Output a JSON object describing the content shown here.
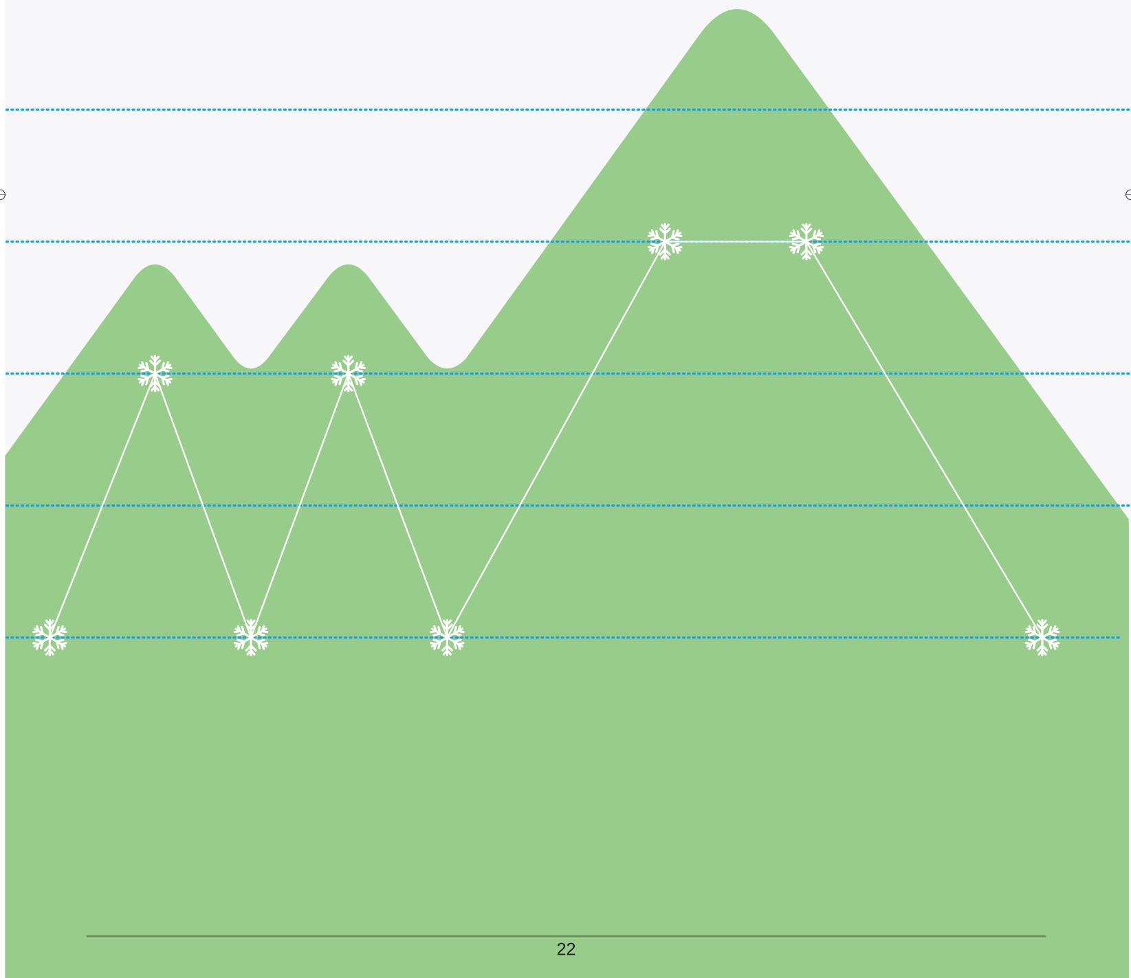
{
  "page_number": "22"
}
